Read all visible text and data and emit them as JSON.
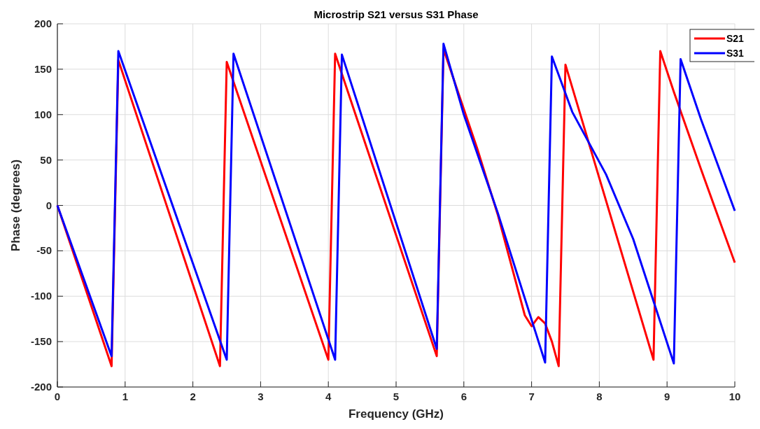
{
  "chart_data": {
    "type": "line",
    "title": "Microstrip S21 versus S31 Phase",
    "xlabel": "Frequency (GHz)",
    "ylabel": "Phase (degrees)",
    "xlim": [
      0,
      10
    ],
    "xticks": [
      0,
      1,
      2,
      3,
      4,
      5,
      6,
      7,
      8,
      9,
      10
    ],
    "ylim": [
      -200,
      200
    ],
    "yticks": [
      -200,
      -150,
      -100,
      -50,
      0,
      50,
      100,
      150,
      200
    ],
    "grid": true,
    "legend": "top right",
    "line_style": "solid",
    "marker": "none",
    "series": [
      {
        "name": "S21",
        "color": "#ff0000",
        "x": [
          0,
          0.8,
          0.9,
          2.4,
          2.5,
          4.0,
          4.1,
          5.6,
          5.7,
          6.0,
          6.2,
          6.5,
          6.9,
          7.0,
          7.1,
          7.2,
          7.3,
          7.4,
          7.5,
          8.8,
          8.9,
          9.1,
          9.5,
          9.8,
          10
        ],
        "values": [
          0,
          -177,
          160,
          -177,
          158,
          -170,
          167,
          -166,
          172,
          106,
          62,
          -10,
          -121,
          -133,
          -123,
          -130,
          -150,
          -177,
          155,
          -170,
          170,
          125,
          40,
          -22,
          -63
        ]
      },
      {
        "name": "S31",
        "color": "#0000ff",
        "x": [
          0,
          0.8,
          0.9,
          2.5,
          2.6,
          4.1,
          4.2,
          5.6,
          5.7,
          6.0,
          6.5,
          7.2,
          7.3,
          7.6,
          8.1,
          8.5,
          9.1,
          9.2,
          9.5,
          10
        ],
        "values": [
          0,
          -166,
          170,
          -170,
          167,
          -170,
          166,
          -158,
          178,
          100,
          -8,
          -173,
          164,
          103,
          34,
          -37,
          -174,
          161,
          95,
          -6
        ]
      }
    ]
  }
}
